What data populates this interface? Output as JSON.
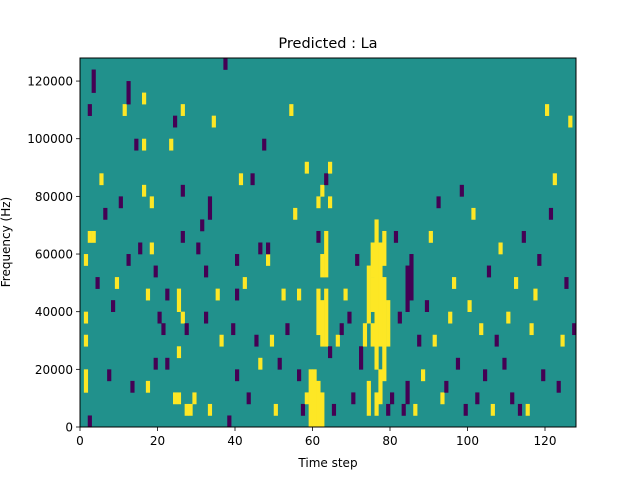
{
  "chart_data": {
    "type": "heatmap",
    "title": "Predicted : La",
    "xlabel": "Time step",
    "ylabel": "Frequency (Hz)",
    "xlim": [
      0,
      128
    ],
    "ylim": [
      0,
      128000
    ],
    "xticks": [
      0,
      20,
      40,
      60,
      80,
      100,
      120
    ],
    "yticks": [
      0,
      20000,
      40000,
      60000,
      80000,
      100000,
      120000
    ],
    "n_time_steps": 128,
    "n_freq_bins": 128,
    "freq_bin_hz": 1000,
    "value_levels": [
      -1,
      0,
      1
    ],
    "colormap": "viridis",
    "level_colors": {
      "-1": "#440154",
      "0": "#21918c",
      "1": "#fde725"
    },
    "background_value": 0,
    "grid": false,
    "legend": "none",
    "cells_note": "Each cell is [time_step, freq_start_hz, freq_end_hz, value]; all other cells hold the background value 0.",
    "cells": [
      [
        2,
        0,
        4000,
        -1
      ],
      [
        1,
        12000,
        20000,
        1
      ],
      [
        1,
        28000,
        32000,
        1
      ],
      [
        1,
        36000,
        40000,
        1
      ],
      [
        1,
        56000,
        60000,
        1
      ],
      [
        2,
        64000,
        68000,
        1
      ],
      [
        3,
        64000,
        68000,
        1
      ],
      [
        2,
        108000,
        112000,
        -1
      ],
      [
        3,
        116000,
        124000,
        -1
      ],
      [
        5,
        84000,
        88000,
        1
      ],
      [
        6,
        72000,
        76000,
        -1
      ],
      [
        4,
        48000,
        52000,
        -1
      ],
      [
        7,
        16000,
        20000,
        -1
      ],
      [
        8,
        40000,
        44000,
        -1
      ],
      [
        9,
        48000,
        52000,
        1
      ],
      [
        10,
        76000,
        80000,
        -1
      ],
      [
        11,
        108000,
        112000,
        1
      ],
      [
        12,
        112000,
        120000,
        -1
      ],
      [
        12,
        56000,
        60000,
        -1
      ],
      [
        13,
        12000,
        16000,
        -1
      ],
      [
        14,
        96000,
        100000,
        -1
      ],
      [
        15,
        60000,
        64000,
        -1
      ],
      [
        16,
        80000,
        84000,
        1
      ],
      [
        16,
        96000,
        100000,
        1
      ],
      [
        16,
        112000,
        116000,
        1
      ],
      [
        17,
        12000,
        16000,
        1
      ],
      [
        17,
        44000,
        48000,
        1
      ],
      [
        18,
        60000,
        64000,
        1
      ],
      [
        18,
        76000,
        80000,
        1
      ],
      [
        19,
        20000,
        24000,
        -1
      ],
      [
        19,
        52000,
        56000,
        -1
      ],
      [
        20,
        36000,
        40000,
        -1
      ],
      [
        21,
        32000,
        36000,
        -1
      ],
      [
        22,
        20000,
        24000,
        -1
      ],
      [
        22,
        44000,
        48000,
        -1
      ],
      [
        23,
        96000,
        100000,
        1
      ],
      [
        24,
        104000,
        108000,
        -1
      ],
      [
        24,
        8000,
        12000,
        1
      ],
      [
        25,
        8000,
        12000,
        1
      ],
      [
        25,
        24000,
        28000,
        1
      ],
      [
        25,
        40000,
        48000,
        1
      ],
      [
        26,
        36000,
        40000,
        1
      ],
      [
        26,
        64000,
        68000,
        -1
      ],
      [
        26,
        80000,
        84000,
        -1
      ],
      [
        26,
        108000,
        112000,
        1
      ],
      [
        27,
        4000,
        8000,
        1
      ],
      [
        27,
        32000,
        36000,
        -1
      ],
      [
        28,
        4000,
        8000,
        1
      ],
      [
        29,
        8000,
        12000,
        1
      ],
      [
        30,
        60000,
        64000,
        -1
      ],
      [
        31,
        68000,
        72000,
        -1
      ],
      [
        32,
        52000,
        56000,
        -1
      ],
      [
        32,
        36000,
        40000,
        -1
      ],
      [
        33,
        72000,
        80000,
        -1
      ],
      [
        33,
        4000,
        8000,
        1
      ],
      [
        34,
        104000,
        108000,
        1
      ],
      [
        35,
        44000,
        48000,
        1
      ],
      [
        36,
        28000,
        32000,
        1
      ],
      [
        37,
        124000,
        128000,
        -1
      ],
      [
        38,
        0,
        4000,
        -1
      ],
      [
        39,
        32000,
        36000,
        -1
      ],
      [
        40,
        44000,
        48000,
        -1
      ],
      [
        40,
        56000,
        60000,
        -1
      ],
      [
        40,
        16000,
        20000,
        -1
      ],
      [
        41,
        84000,
        88000,
        1
      ],
      [
        42,
        48000,
        52000,
        1
      ],
      [
        43,
        8000,
        12000,
        -1
      ],
      [
        44,
        84000,
        88000,
        -1
      ],
      [
        45,
        28000,
        32000,
        -1
      ],
      [
        46,
        60000,
        64000,
        -1
      ],
      [
        46,
        20000,
        24000,
        1
      ],
      [
        47,
        96000,
        100000,
        -1
      ],
      [
        48,
        56000,
        60000,
        1
      ],
      [
        48,
        60000,
        64000,
        -1
      ],
      [
        49,
        28000,
        32000,
        1
      ],
      [
        50,
        4000,
        8000,
        1
      ],
      [
        51,
        20000,
        24000,
        -1
      ],
      [
        52,
        44000,
        48000,
        1
      ],
      [
        53,
        32000,
        36000,
        -1
      ],
      [
        54,
        108000,
        112000,
        1
      ],
      [
        55,
        72000,
        76000,
        1
      ],
      [
        56,
        44000,
        48000,
        1
      ],
      [
        56,
        16000,
        20000,
        -1
      ],
      [
        57,
        4000,
        8000,
        -1
      ],
      [
        58,
        88000,
        92000,
        1
      ],
      [
        58,
        8000,
        12000,
        1
      ],
      [
        59,
        0,
        20000,
        1
      ],
      [
        60,
        0,
        20000,
        1
      ],
      [
        61,
        0,
        16000,
        1
      ],
      [
        62,
        0,
        12000,
        1
      ],
      [
        61,
        32000,
        48000,
        1
      ],
      [
        62,
        28000,
        44000,
        1
      ],
      [
        63,
        28000,
        48000,
        1
      ],
      [
        62,
        52000,
        60000,
        1
      ],
      [
        63,
        52000,
        68000,
        1
      ],
      [
        61,
        64000,
        68000,
        -1
      ],
      [
        61,
        76000,
        80000,
        1
      ],
      [
        62,
        80000,
        84000,
        1
      ],
      [
        63,
        84000,
        88000,
        -1
      ],
      [
        64,
        88000,
        92000,
        1
      ],
      [
        64,
        76000,
        80000,
        1
      ],
      [
        64,
        24000,
        28000,
        -1
      ],
      [
        65,
        4000,
        8000,
        -1
      ],
      [
        66,
        28000,
        32000,
        1
      ],
      [
        67,
        32000,
        36000,
        -1
      ],
      [
        68,
        44000,
        48000,
        1
      ],
      [
        69,
        36000,
        40000,
        -1
      ],
      [
        70,
        8000,
        12000,
        -1
      ],
      [
        71,
        56000,
        60000,
        -1
      ],
      [
        72,
        20000,
        28000,
        -1
      ],
      [
        73,
        28000,
        36000,
        1
      ],
      [
        74,
        4000,
        16000,
        1
      ],
      [
        74,
        36000,
        56000,
        1
      ],
      [
        75,
        28000,
        36000,
        1
      ],
      [
        75,
        40000,
        52000,
        1
      ],
      [
        75,
        52000,
        64000,
        1
      ],
      [
        76,
        4000,
        12000,
        1
      ],
      [
        76,
        20000,
        72000,
        1
      ],
      [
        77,
        8000,
        20000,
        1
      ],
      [
        77,
        28000,
        64000,
        1
      ],
      [
        78,
        16000,
        52000,
        1
      ],
      [
        78,
        56000,
        68000,
        1
      ],
      [
        79,
        4000,
        8000,
        -1
      ],
      [
        79,
        28000,
        44000,
        1
      ],
      [
        80,
        8000,
        12000,
        -1
      ],
      [
        81,
        64000,
        68000,
        -1
      ],
      [
        82,
        36000,
        40000,
        -1
      ],
      [
        83,
        4000,
        8000,
        -1
      ],
      [
        84,
        8000,
        16000,
        -1
      ],
      [
        84,
        40000,
        56000,
        -1
      ],
      [
        85,
        44000,
        60000,
        -1
      ],
      [
        86,
        4000,
        8000,
        1
      ],
      [
        87,
        28000,
        32000,
        -1
      ],
      [
        88,
        16000,
        20000,
        1
      ],
      [
        89,
        40000,
        44000,
        -1
      ],
      [
        90,
        64000,
        68000,
        1
      ],
      [
        91,
        28000,
        32000,
        1
      ],
      [
        92,
        76000,
        80000,
        -1
      ],
      [
        93,
        8000,
        12000,
        1
      ],
      [
        94,
        12000,
        16000,
        -1
      ],
      [
        95,
        36000,
        40000,
        1
      ],
      [
        96,
        48000,
        52000,
        1
      ],
      [
        97,
        20000,
        24000,
        -1
      ],
      [
        98,
        80000,
        84000,
        -1
      ],
      [
        99,
        4000,
        8000,
        -1
      ],
      [
        100,
        40000,
        44000,
        1
      ],
      [
        101,
        72000,
        76000,
        1
      ],
      [
        102,
        8000,
        12000,
        -1
      ],
      [
        103,
        32000,
        36000,
        1
      ],
      [
        104,
        16000,
        20000,
        -1
      ],
      [
        105,
        52000,
        56000,
        -1
      ],
      [
        106,
        4000,
        8000,
        1
      ],
      [
        107,
        28000,
        32000,
        -1
      ],
      [
        108,
        60000,
        64000,
        1
      ],
      [
        109,
        20000,
        24000,
        -1
      ],
      [
        110,
        36000,
        40000,
        1
      ],
      [
        111,
        8000,
        12000,
        -1
      ],
      [
        112,
        48000,
        52000,
        1
      ],
      [
        113,
        4000,
        8000,
        -1
      ],
      [
        114,
        64000,
        68000,
        -1
      ],
      [
        115,
        4000,
        8000,
        1
      ],
      [
        116,
        32000,
        36000,
        1
      ],
      [
        117,
        44000,
        48000,
        1
      ],
      [
        118,
        56000,
        60000,
        -1
      ],
      [
        119,
        16000,
        20000,
        -1
      ],
      [
        120,
        108000,
        112000,
        1
      ],
      [
        121,
        72000,
        76000,
        -1
      ],
      [
        122,
        84000,
        88000,
        1
      ],
      [
        123,
        12000,
        16000,
        -1
      ],
      [
        124,
        28000,
        32000,
        1
      ],
      [
        125,
        48000,
        52000,
        -1
      ],
      [
        126,
        104000,
        108000,
        1
      ],
      [
        127,
        32000,
        36000,
        -1
      ]
    ]
  }
}
